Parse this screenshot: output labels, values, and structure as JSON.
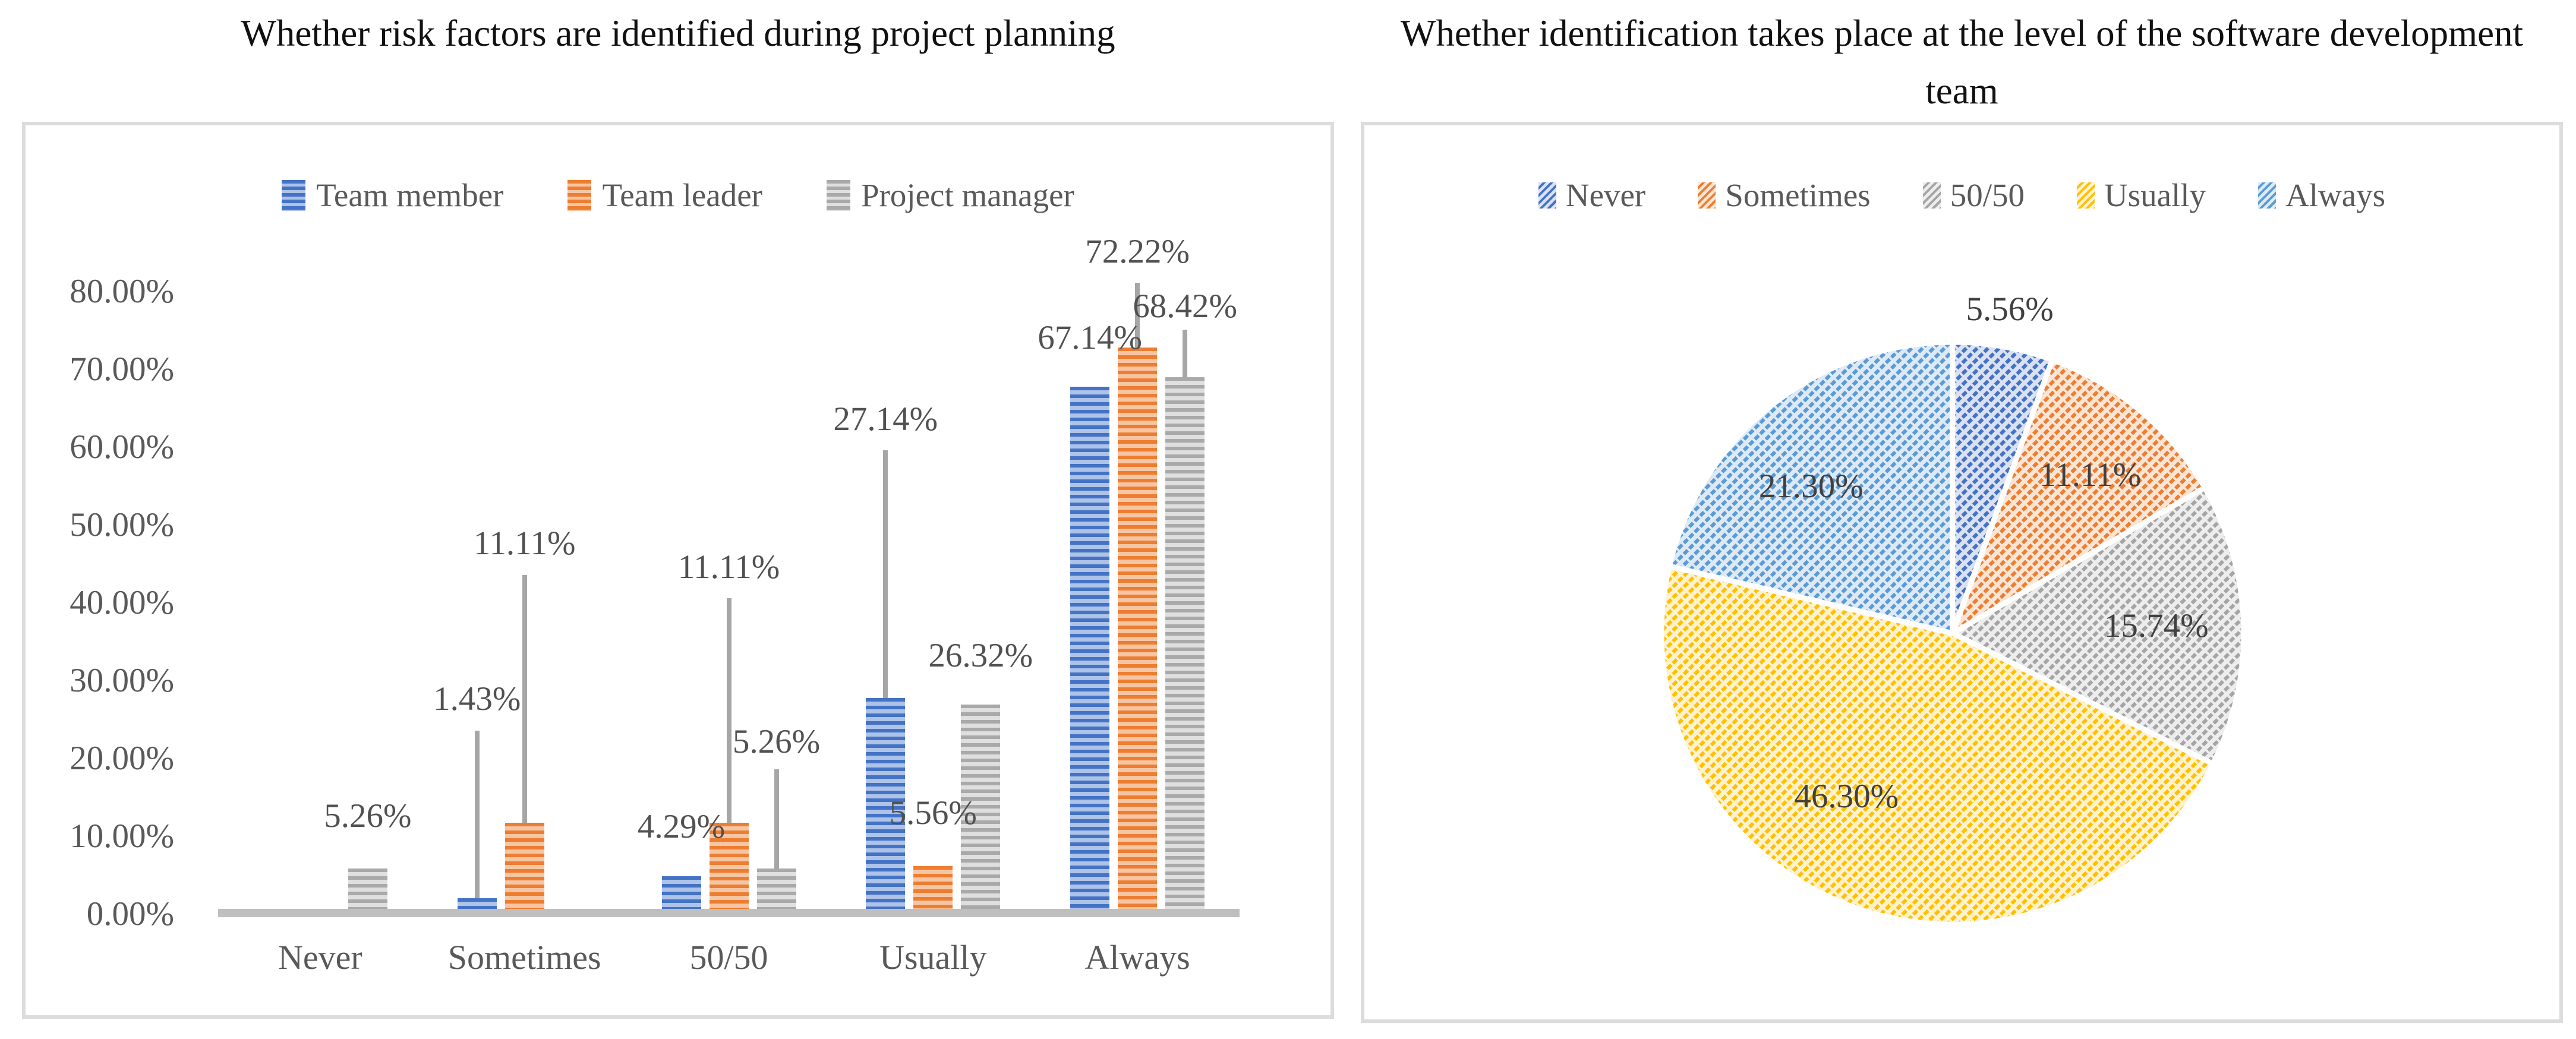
{
  "chart_data": [
    {
      "type": "bar",
      "title": "Whether risk factors are identified during project planning",
      "categories": [
        "Never",
        "Sometimes",
        "50/50",
        "Usually",
        "Always"
      ],
      "series": [
        {
          "name": "Team member",
          "color": "#4472C4",
          "tint": "#AEC3E8",
          "values": [
            0,
            1.43,
            4.29,
            27.14,
            67.14
          ],
          "labels": [
            "",
            "1.43%",
            "4.29%",
            "27.14%",
            "67.14%"
          ],
          "label_y": [
            null,
            27,
            10.6,
            63,
            73.4
          ],
          "leader_from": [
            null,
            23,
            null,
            59,
            null
          ]
        },
        {
          "name": "Team leader",
          "color": "#ED7D31",
          "tint": "#F6C6A4",
          "values": [
            0,
            11.11,
            11.11,
            5.56,
            72.22
          ],
          "labels": [
            "",
            "11.11%",
            "11.11%",
            "5.56%",
            "72.22%"
          ],
          "label_y": [
            null,
            47,
            44,
            12.4,
            84.5
          ],
          "leader_from": [
            null,
            43,
            40,
            null,
            80.5
          ]
        },
        {
          "name": "Project manager",
          "color": "#A9A9A9",
          "tint": "#DFDFDF",
          "values": [
            5.26,
            0,
            5.26,
            26.32,
            68.42
          ],
          "labels": [
            "5.26%",
            "",
            "5.26%",
            "26.32%",
            "68.42%"
          ],
          "label_y": [
            12,
            null,
            21.5,
            32.6,
            77.5
          ],
          "leader_from": [
            null,
            null,
            18,
            null,
            74.5
          ]
        }
      ],
      "y_ticks": [
        "0.00%",
        "10.00%",
        "20.00%",
        "30.00%",
        "40.00%",
        "50.00%",
        "60.00%",
        "70.00%",
        "80.00%"
      ],
      "ylim": [
        0,
        80
      ],
      "tick_step": 10,
      "grid": false,
      "legend_position": "top",
      "axis_line_color": "#BFBFBF",
      "leader_line_color": "#A6A6A6"
    },
    {
      "type": "pie",
      "title": "Whether identification takes place at the level of the software development team",
      "labels": [
        "Never",
        "Sometimes",
        "50/50",
        "Usually",
        "Always"
      ],
      "values": [
        5.56,
        11.11,
        15.74,
        46.3,
        21.3
      ],
      "data_labels": [
        "5.56%",
        "11.11%",
        "15.74%",
        "46.30%",
        "21.30%"
      ],
      "colors": [
        "#4472C4",
        "#ED7D31",
        "#A5A5A5",
        "#FFC000",
        "#5B9BD5"
      ],
      "tints": [
        "#D9E1F2",
        "#FBE5D5",
        "#EDEDED",
        "#FFF2CC",
        "#DDEAF6"
      ],
      "start_angle_deg": 0,
      "direction": "clockwise",
      "legend_position": "top",
      "label_radius_frac": [
        1.13,
        0.72,
        0.7,
        0.67,
        0.7
      ],
      "label_angle_deg": [
        10,
        41,
        88,
        213,
        316
      ]
    }
  ]
}
